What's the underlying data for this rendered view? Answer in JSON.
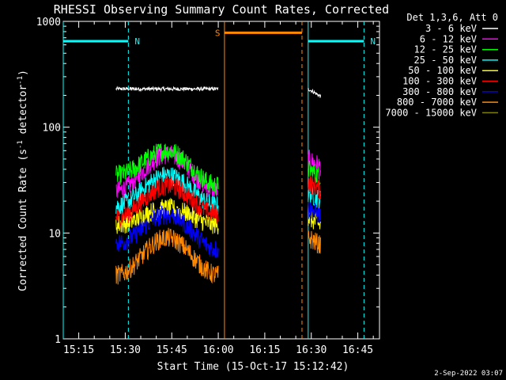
{
  "chart_data": {
    "type": "line",
    "title": "RHESSI Observing Summary Count Rates, Corrected",
    "xlabel": "Start Time (15-Oct-17 15:12:42)",
    "ylabel": "Corrected Count Rate (s⁻¹ detector⁻¹)",
    "ylabel_parts": {
      "pre": "Corrected Count Rate (s",
      "sup1": "-1",
      "mid": " detector",
      "sup2": "-1",
      "post": ")"
    },
    "timestamp": "2-Sep-2022 03:07",
    "yscale": "log",
    "xlim": [
      "15:10",
      "16:52"
    ],
    "ylim": [
      1,
      1000
    ],
    "x_ticks": [
      "15:15",
      "15:30",
      "15:45",
      "16:00",
      "16:15",
      "16:30",
      "16:45"
    ],
    "y_ticks": [
      "1",
      "10",
      "100",
      "1000"
    ],
    "legend": {
      "position": "outside-right",
      "title": "Det 1,3,6, Att 0",
      "entries": [
        {
          "label": "3 - 6 keV",
          "color": "#000000"
        },
        {
          "label": "6 - 12 keV",
          "color": "#ff00ff"
        },
        {
          "label": "12 - 25 keV",
          "color": "#00ff00"
        },
        {
          "label": "25 - 50 keV",
          "color": "#00ffff"
        },
        {
          "label": "50 - 100 keV",
          "color": "#ffff00"
        },
        {
          "label": "100 - 300 keV",
          "color": "#ff0000"
        },
        {
          "label": "300 - 800 keV",
          "color": "#0000ff"
        },
        {
          "label": "800 - 7000 keV",
          "color": "#ff8800"
        },
        {
          "label": "7000 - 15000 keV",
          "color": "#808000"
        }
      ]
    },
    "annotations": [
      {
        "label": "N",
        "color": "#00ffff",
        "time_start": "15:10",
        "time_end": "15:31"
      },
      {
        "label": "N",
        "color": "#00ffff",
        "time_start": "16:29",
        "time_end": "16:47"
      },
      {
        "label": "S",
        "color": "#ff8800",
        "time_start": "16:02",
        "time_end": "16:27"
      }
    ],
    "segments": [
      {
        "time_start": "15:27",
        "time_end": "16:00"
      },
      {
        "time_start": "16:29",
        "time_end": "16:33"
      }
    ],
    "series": [
      {
        "name": "3 - 6 keV",
        "color": "#000000",
        "values": [
          230,
          230
        ]
      },
      {
        "name": "6 - 12 keV",
        "color": "#ff00ff",
        "values": [
          25,
          55,
          25
        ]
      },
      {
        "name": "12 - 25 keV",
        "color": "#00ff00",
        "values": [
          35,
          60,
          28
        ]
      },
      {
        "name": "25 - 50 keV",
        "color": "#00ffff",
        "values": [
          18,
          35,
          18
        ]
      },
      {
        "name": "50 - 100 keV",
        "color": "#ffff00",
        "values": [
          12,
          17,
          12
        ]
      },
      {
        "name": "100 - 300 keV",
        "color": "#ff0000",
        "values": [
          14,
          28,
          15
        ]
      },
      {
        "name": "300 - 800 keV",
        "color": "#0000ff",
        "values": [
          8,
          15,
          7
        ]
      },
      {
        "name": "800 - 7000 keV",
        "color": "#ff8800",
        "values": [
          4,
          9,
          4
        ]
      }
    ]
  }
}
